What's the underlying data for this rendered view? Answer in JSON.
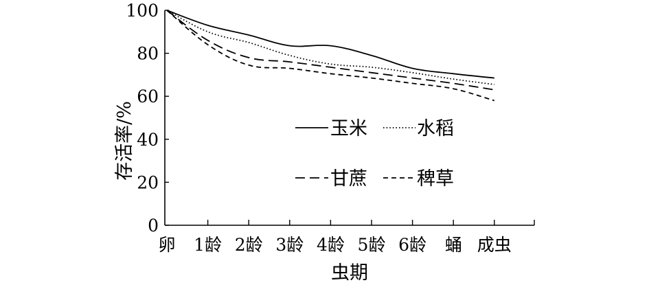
{
  "chart_data": {
    "type": "line",
    "categories": [
      "卵",
      "1龄",
      "2龄",
      "3龄",
      "4龄",
      "5龄",
      "6龄",
      "蛹",
      "成虫"
    ],
    "xlabel": "虫期",
    "ylabel": "存活率/%",
    "ylim": [
      0,
      100
    ],
    "yticks": [
      0,
      20,
      40,
      60,
      80,
      100
    ],
    "grid": false,
    "legend": "center",
    "series": [
      {
        "name": "玉米",
        "style": "solid",
        "values": [
          100,
          93,
          88.5,
          83.5,
          83.5,
          79,
          73,
          70.5,
          68.5
        ]
      },
      {
        "name": "水稻",
        "style": "dotted",
        "values": [
          100,
          90,
          85,
          79,
          75,
          73.5,
          71,
          68,
          65.5
        ]
      },
      {
        "name": "甘蔗",
        "style": "long-dash",
        "values": [
          100,
          86,
          78,
          76,
          73.5,
          71,
          68.5,
          66,
          63
        ]
      },
      {
        "name": "稗草",
        "style": "short-dash",
        "values": [
          100,
          84,
          74.5,
          73,
          70.5,
          68.5,
          66,
          63.5,
          58
        ]
      }
    ]
  }
}
